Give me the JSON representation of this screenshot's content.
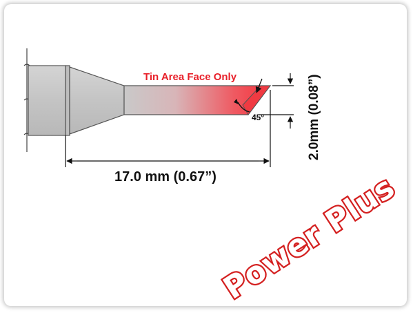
{
  "diagram": {
    "tin_label": "Tin Area Face Only",
    "angle_label": "45°",
    "length_label": "17.0 mm (0.67”)",
    "width_label": "2.0mm (0.08”)",
    "brand_watermark": "Power Plus"
  },
  "colors": {
    "tin_red": "#e8202a",
    "body_gray": "#c8c8c8",
    "outline": "#555555",
    "brand_red": "#d42020"
  }
}
